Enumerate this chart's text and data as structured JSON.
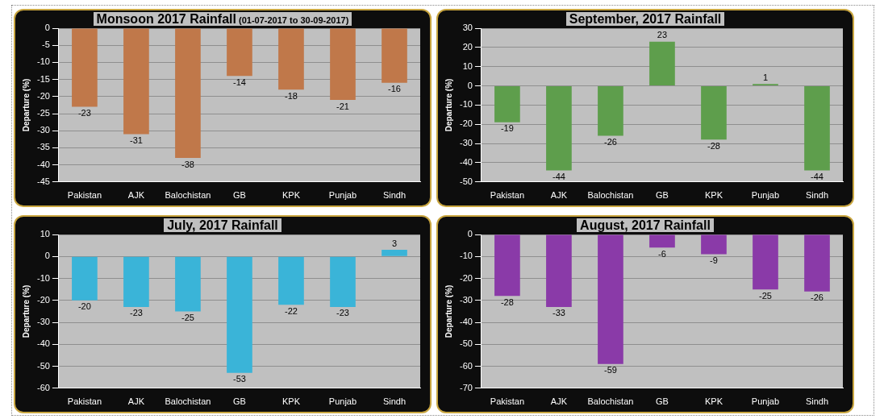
{
  "chart_data": [
    {
      "type": "bar",
      "title": "Monsoon 2017 Rainfall",
      "subtitle": "(01-07-2017 to 30-09-2017)",
      "ylabel": "Departure (%)",
      "categories": [
        "Pakistan",
        "AJK",
        "Balochistan",
        "GB",
        "KPK",
        "Punjab",
        "Sindh"
      ],
      "series": [
        {
          "color": "#c0784a",
          "values": [
            -23,
            -31,
            -38,
            -14,
            -18,
            -21,
            -16
          ]
        }
      ],
      "ylim": [
        -45,
        0
      ],
      "yticks": [
        0,
        -5,
        -10,
        -15,
        -20,
        -25,
        -30,
        -35,
        -40,
        -45
      ],
      "grid": "y",
      "legend": false,
      "data_labels": true
    },
    {
      "type": "bar",
      "title": "September, 2017 Rainfall",
      "ylabel": "Departure (%)",
      "categories": [
        "Pakistan",
        "AJK",
        "Balochistan",
        "GB",
        "KPK",
        "Punjab",
        "Sindh"
      ],
      "series": [
        {
          "color": "#5e9e4c",
          "values": [
            -19,
            -44,
            -26,
            23,
            -28,
            1,
            -44
          ]
        }
      ],
      "ylim": [
        -50,
        30
      ],
      "yticks": [
        30,
        20,
        10,
        0,
        -10,
        -20,
        -30,
        -40,
        -50
      ],
      "grid": "y",
      "legend": false,
      "data_labels": true
    },
    {
      "type": "bar",
      "title": "July, 2017 Rainfall",
      "ylabel": "Departure (%)",
      "categories": [
        "Pakistan",
        "AJK",
        "Balochistan",
        "GB",
        "KPK",
        "Punjab",
        "Sindh"
      ],
      "series": [
        {
          "color": "#3ab4d8",
          "values": [
            -20,
            -23,
            -25,
            -53,
            -22,
            -23,
            3
          ]
        }
      ],
      "ylim": [
        -60,
        10
      ],
      "yticks": [
        10,
        0,
        -10,
        -20,
        -30,
        -40,
        -50,
        -60
      ],
      "grid": "y",
      "legend": false,
      "data_labels": true
    },
    {
      "type": "bar",
      "title": "August, 2017 Rainfall",
      "ylabel": "Departure (%)",
      "categories": [
        "Pakistan",
        "AJK",
        "Balochistan",
        "GB",
        "KPK",
        "Punjab",
        "Sindh"
      ],
      "series": [
        {
          "color": "#8a3aa8",
          "values": [
            -28,
            -33,
            -59,
            -6,
            -9,
            -25,
            -26
          ]
        }
      ],
      "ylim": [
        -70,
        0
      ],
      "yticks": [
        0,
        -10,
        -20,
        -30,
        -40,
        -50,
        -60,
        -70
      ],
      "grid": "y",
      "legend": false,
      "data_labels": true
    }
  ]
}
